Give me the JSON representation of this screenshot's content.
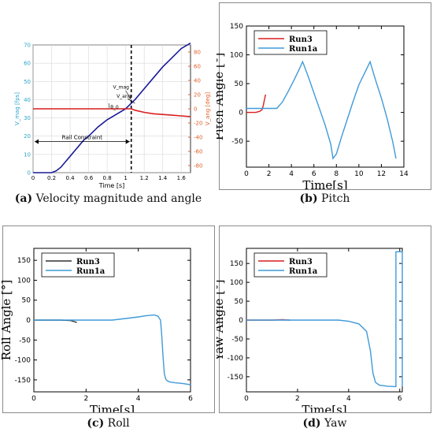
{
  "captions": [
    {
      "letter": "(a)",
      "text": " Velocity magnitude and angle"
    },
    {
      "letter": "(b)",
      "text": " Pitch"
    },
    {
      "letter": "(c)",
      "text": " Roll"
    },
    {
      "letter": "(d)",
      "text": " Yaw"
    }
  ],
  "colors": {
    "blue": "#3f9ad8",
    "red": "#d91f1f",
    "navy": "#1a1a9a",
    "orange": "#e0602a",
    "cyan_axis": "#2aa5c8",
    "dark": "#303030"
  },
  "chart_data": [
    {
      "id": "a",
      "type": "line",
      "xlabel": "Time [s]",
      "ylabel_left": "V_mag [fps]",
      "ylabel_right": "V_ang [deg]",
      "xlim": [
        0,
        1.7
      ],
      "ylim_left": [
        0,
        70
      ],
      "ylim_right": [
        -90,
        90
      ],
      "x_ticks": [
        0,
        0.2,
        0.4,
        0.6,
        0.8,
        1,
        1.2,
        1.4,
        1.6
      ],
      "y_ticks_left": [
        0,
        10,
        20,
        30,
        40,
        50,
        60,
        70
      ],
      "y_ticks_right": [
        -80,
        -60,
        -40,
        -20,
        0,
        20,
        40,
        60,
        80
      ],
      "grid": true,
      "rail_line_x": 1.06,
      "annotations": [
        {
          "text": "Rail Constraint",
          "x_from": 0.0,
          "x_to": 1.06,
          "y": 17
        },
        {
          "text": "V_mag",
          "x": 0.95,
          "y": 46
        },
        {
          "text": "V_ang",
          "x": 0.98,
          "y": 41
        },
        {
          "text": "θ_0",
          "x": 0.88,
          "y": 35
        }
      ],
      "series": [
        {
          "axis": "left",
          "color": "navy",
          "x": [
            0,
            0.2,
            0.25,
            0.3,
            0.35,
            0.4,
            0.45,
            0.5,
            0.55,
            0.6,
            0.7,
            0.8,
            0.9,
            1.0,
            1.06,
            1.1,
            1.2,
            1.3,
            1.4,
            1.5,
            1.6,
            1.7
          ],
          "values": [
            0,
            0,
            1,
            3,
            6,
            9,
            12,
            15,
            18,
            20,
            25,
            29,
            32,
            35,
            38,
            40,
            46,
            52,
            58,
            63,
            68,
            71
          ]
        },
        {
          "axis": "right",
          "color": "red",
          "x": [
            0,
            0.2,
            0.4,
            0.6,
            0.8,
            1.0,
            1.06,
            1.1,
            1.2,
            1.3,
            1.4,
            1.5,
            1.6,
            1.7
          ],
          "values": [
            0,
            0,
            0,
            0,
            0,
            0,
            0,
            -2,
            -5,
            -7,
            -8,
            -9,
            -10,
            -11
          ]
        }
      ]
    },
    {
      "id": "b",
      "type": "line",
      "xlabel": "Time[s]",
      "ylabel": "Pitch Angle [°]",
      "xlim": [
        0,
        14
      ],
      "ylim": [
        -95,
        150
      ],
      "x_ticks": [
        0,
        2,
        4,
        6,
        8,
        10,
        12,
        14
      ],
      "y_ticks": [
        -50,
        0,
        50,
        100,
        150
      ],
      "series": [
        {
          "name": "Run3",
          "color": "red",
          "x": [
            0,
            0.8,
            1.0,
            1.2,
            1.4,
            1.5,
            1.6,
            1.7
          ],
          "values": [
            0,
            0,
            1,
            2,
            5,
            12,
            22,
            31
          ]
        },
        {
          "name": "Run1a",
          "color": "blue",
          "x": [
            0,
            2.7,
            3.2,
            3.7,
            4.2,
            4.7,
            5.0,
            5.5,
            6.0,
            6.5,
            7.0,
            7.5,
            7.7,
            8.0,
            8.5,
            9.0,
            9.5,
            10.0,
            10.5,
            11.0,
            11.5,
            12.0,
            12.5,
            13.0,
            13.3
          ],
          "values": [
            7,
            7,
            18,
            36,
            55,
            75,
            88,
            62,
            34,
            6,
            -22,
            -55,
            -80,
            -72,
            -40,
            -10,
            20,
            48,
            68,
            88,
            55,
            25,
            -10,
            -50,
            -80
          ]
        }
      ]
    },
    {
      "id": "c",
      "type": "line",
      "xlabel": "Time[s]",
      "ylabel": "Roll Angle [°]",
      "xlim": [
        0,
        6
      ],
      "ylim": [
        -180,
        180
      ],
      "x_ticks": [
        0,
        2,
        4,
        6
      ],
      "y_ticks": [
        -150,
        -100,
        -50,
        0,
        50,
        100,
        150
      ],
      "series": [
        {
          "name": "Run3",
          "color": "dark",
          "x": [
            0,
            0.5,
            1.0,
            1.4,
            1.55,
            1.65
          ],
          "values": [
            0,
            0,
            0,
            -1,
            -4,
            -6
          ]
        },
        {
          "name": "Run1a",
          "color": "blue",
          "x": [
            0,
            1,
            2,
            3,
            3.5,
            4,
            4.3,
            4.6,
            4.75,
            4.85,
            4.9,
            4.95,
            5.0,
            5.05,
            5.1,
            5.2,
            5.4,
            5.7,
            6.0
          ],
          "values": [
            0,
            0,
            0,
            0,
            4,
            8,
            11,
            13,
            10,
            0,
            -40,
            -95,
            -135,
            -148,
            -152,
            -155,
            -157,
            -159,
            -162
          ]
        }
      ]
    },
    {
      "id": "d",
      "type": "line",
      "xlabel": "Time[s]",
      "ylabel": "Yaw Angle [°]",
      "xlim": [
        0,
        6.1
      ],
      "ylim": [
        -190,
        190
      ],
      "x_ticks": [
        0,
        2,
        4,
        6
      ],
      "y_ticks": [
        -150,
        -100,
        -50,
        0,
        50,
        100,
        150
      ],
      "series": [
        {
          "name": "Run3",
          "color": "red",
          "x": [
            0,
            0.5,
            1.0,
            1.4,
            1.7
          ],
          "values": [
            0,
            0,
            0,
            1,
            0
          ]
        },
        {
          "name": "Run1a",
          "color": "blue",
          "x": [
            0,
            1,
            2,
            3,
            3.6,
            4.0,
            4.4,
            4.7,
            4.85,
            4.95,
            5.05,
            5.2,
            5.5,
            5.8,
            5.85,
            5.85,
            6.1,
            6.1
          ],
          "values": [
            0,
            0,
            0,
            0,
            0,
            -3,
            -10,
            -30,
            -80,
            -140,
            -165,
            -172,
            -175,
            -176,
            -176,
            181,
            181,
            -176
          ]
        }
      ]
    }
  ]
}
